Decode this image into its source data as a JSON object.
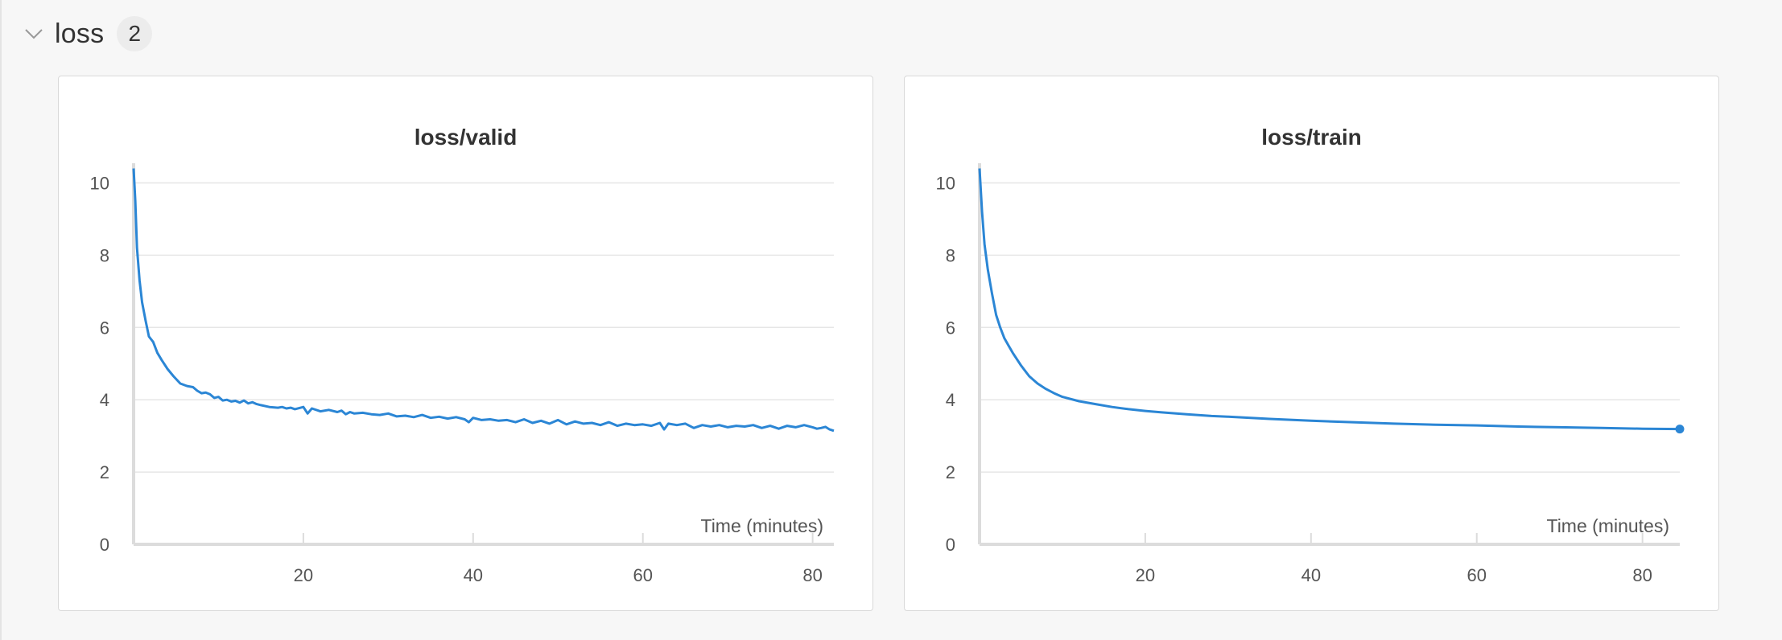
{
  "section": {
    "title": "loss",
    "count": "2"
  },
  "colors": {
    "line": "#2b86d5",
    "grid": "#e6e6e6",
    "axis": "#dcdcdc"
  },
  "chart_data": [
    {
      "type": "line",
      "title": "loss/valid",
      "xlabel": "Time (minutes)",
      "ylabel": "",
      "xlim": [
        0,
        82.5
      ],
      "ylim": [
        0,
        10.5
      ],
      "xticks": [
        20,
        40,
        60,
        80
      ],
      "xtick_labels": [
        "20",
        "40",
        "60",
        "80"
      ],
      "yticks": [
        0,
        2,
        4,
        6,
        8,
        10
      ],
      "ytick_labels": [
        "0",
        "2",
        "4",
        "6",
        "8",
        "10"
      ],
      "grid": true,
      "series": [
        {
          "marker_last": false,
          "x": [
            0,
            0.2,
            0.4,
            0.7,
            1,
            1.4,
            1.8,
            2.3,
            2.8,
            3.3,
            4,
            4.7,
            5.5,
            6.3,
            7,
            7.5,
            8,
            8.5,
            9,
            9.5,
            10,
            10.5,
            11,
            11.5,
            12,
            12.5,
            13,
            13.5,
            14,
            14.5,
            15,
            16,
            17,
            17.5,
            18,
            18.5,
            19,
            20,
            20.5,
            21,
            22,
            23,
            24,
            24.5,
            25,
            25.5,
            26,
            27,
            28,
            29,
            30,
            31,
            32,
            33,
            34,
            35,
            36,
            37,
            38,
            39,
            39.5,
            40,
            41,
            42,
            43,
            44,
            45,
            46,
            47,
            48,
            49,
            50,
            51,
            52,
            53,
            54,
            55,
            56,
            57,
            58,
            59,
            60,
            61,
            62,
            62.5,
            63,
            64,
            65,
            66,
            67,
            68,
            69,
            70,
            71,
            72,
            73,
            74,
            75,
            76,
            77,
            78,
            79,
            80,
            80.5,
            81,
            81.5,
            82,
            82.5
          ],
          "y": [
            10.4,
            9.5,
            8.2,
            7.3,
            6.7,
            6.2,
            5.75,
            5.6,
            5.3,
            5.1,
            4.85,
            4.65,
            4.45,
            4.38,
            4.35,
            4.25,
            4.18,
            4.2,
            4.15,
            4.05,
            4.08,
            3.98,
            4.0,
            3.95,
            3.97,
            3.92,
            3.98,
            3.9,
            3.93,
            3.88,
            3.85,
            3.8,
            3.78,
            3.8,
            3.76,
            3.78,
            3.74,
            3.8,
            3.62,
            3.76,
            3.68,
            3.72,
            3.66,
            3.7,
            3.6,
            3.66,
            3.62,
            3.64,
            3.6,
            3.58,
            3.62,
            3.54,
            3.56,
            3.52,
            3.58,
            3.5,
            3.53,
            3.48,
            3.52,
            3.46,
            3.38,
            3.5,
            3.44,
            3.46,
            3.42,
            3.44,
            3.38,
            3.46,
            3.36,
            3.42,
            3.34,
            3.44,
            3.32,
            3.4,
            3.34,
            3.36,
            3.3,
            3.38,
            3.28,
            3.34,
            3.3,
            3.32,
            3.28,
            3.36,
            3.18,
            3.34,
            3.3,
            3.34,
            3.22,
            3.3,
            3.26,
            3.3,
            3.24,
            3.28,
            3.26,
            3.3,
            3.22,
            3.28,
            3.2,
            3.28,
            3.24,
            3.3,
            3.24,
            3.2,
            3.22,
            3.25,
            3.18,
            3.14
          ]
        }
      ]
    },
    {
      "type": "line",
      "title": "loss/train",
      "xlabel": "Time (minutes)",
      "ylabel": "",
      "xlim": [
        0,
        84.5
      ],
      "ylim": [
        0,
        10.5
      ],
      "xticks": [
        20,
        40,
        60,
        80
      ],
      "xtick_labels": [
        "20",
        "40",
        "60",
        "80"
      ],
      "yticks": [
        0,
        2,
        4,
        6,
        8,
        10
      ],
      "ytick_labels": [
        "0",
        "2",
        "4",
        "6",
        "8",
        "10"
      ],
      "grid": true,
      "series": [
        {
          "marker_last": true,
          "x": [
            0,
            0.3,
            0.6,
            1,
            1.5,
            2,
            2.5,
            3,
            3.5,
            4,
            5,
            6,
            7,
            8,
            9,
            10,
            12,
            14,
            16,
            18,
            20,
            22,
            25,
            28,
            30,
            35,
            40,
            45,
            50,
            55,
            60,
            65,
            70,
            75,
            80,
            84.5
          ],
          "y": [
            10.4,
            9.2,
            8.3,
            7.6,
            6.95,
            6.35,
            6.0,
            5.7,
            5.5,
            5.3,
            4.95,
            4.65,
            4.45,
            4.3,
            4.18,
            4.08,
            3.96,
            3.88,
            3.8,
            3.74,
            3.69,
            3.65,
            3.6,
            3.55,
            3.53,
            3.47,
            3.42,
            3.38,
            3.34,
            3.31,
            3.29,
            3.26,
            3.24,
            3.22,
            3.2,
            3.19
          ]
        }
      ]
    }
  ]
}
